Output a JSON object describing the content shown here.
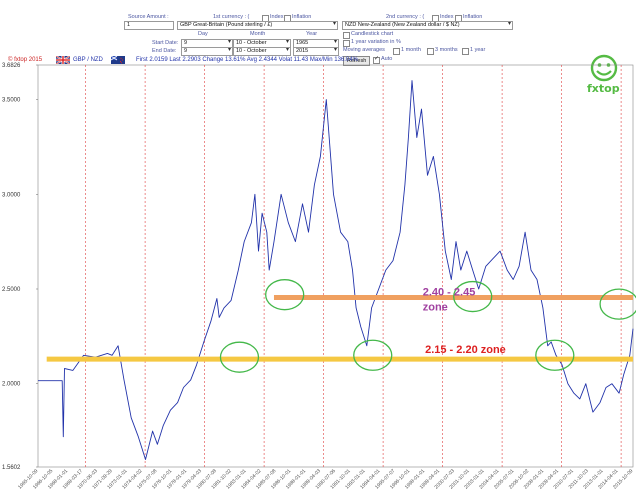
{
  "form": {
    "source_amount_label": "Source Amount :",
    "source_amount_value": "1",
    "first_currency_label": "1st currency : (",
    "index_label": "Index",
    "inflation_label": "Inflation",
    "first_currency_value": "GBP Great-Britain (Pound sterling / £)",
    "second_currency_label": "2nd currency : (",
    "second_currency_value": "NZD New-Zealand (New Zealand dollar / $ NZ)",
    "day_label": "Day",
    "month_label": "Month",
    "year_label": "Year",
    "start_date_label": "Start Date:",
    "end_date_label": "End Date:",
    "start_day": "9",
    "start_month": "10 - October",
    "start_year": "1965",
    "end_day": "9",
    "end_month": "10 - October",
    "end_year": "2015",
    "candlestick_label": "Candlestick chart",
    "variation_label": "1 year variation in %",
    "moving_avg_label": "Moving averages",
    "ma_1m": "1 month",
    "ma_3m": "3 months",
    "ma_1y": "1 year",
    "refresh_label": "Refresh",
    "auto_label": "Auto"
  },
  "header": {
    "copyright": "© fxtop 2015",
    "pair": "GBP / NZD",
    "stats": "First 2.0159 Last 2.2903 Change 13.61% Avg 2.4344 Volat 11.43 Max/Min 136.04%"
  },
  "logo_text": "fxtop",
  "chart_data": {
    "type": "line",
    "x_start": "1965-10-09",
    "x_end": "2015-10-09",
    "ylim": [
      1.5602,
      3.6826
    ],
    "yticks": [
      "3.6826",
      "3.5000",
      "3.0000",
      "2.5000",
      "2.0000",
      "1.5602"
    ],
    "xlabel": "date",
    "grid": "vertical dashed red",
    "series": [
      {
        "x": [
          1965.77,
          1967.8,
          1967.9,
          1968.0,
          1968.7,
          1969.6,
          1970.6,
          1971.6,
          1972.0,
          1972.5,
          1973.0,
          1973.6,
          1974.2,
          1974.8,
          1975.4,
          1975.8,
          1976.3,
          1976.9,
          1977.5,
          1978.0,
          1978.6,
          1979.1,
          1979.7,
          1980.3,
          1980.8,
          1981.0,
          1981.4,
          1982.0,
          1982.6,
          1983.1,
          1983.7,
          1984.0,
          1984.3,
          1984.6,
          1985.0,
          1985.2,
          1985.6,
          1986.2,
          1986.8,
          1987.4,
          1988.0,
          1988.5,
          1989.0,
          1989.5,
          1990.0,
          1990.6,
          1991.2,
          1991.8,
          1992.2,
          1992.5,
          1992.9,
          1993.4,
          1993.8,
          1994.4,
          1995.0,
          1995.6,
          1996.2,
          1996.6,
          1996.9,
          1997.2,
          1997.6,
          1998.0,
          1998.5,
          1999.0,
          1999.5,
          2000.0,
          2000.5,
          2000.9,
          2001.3,
          2001.8,
          2002.3,
          2002.8,
          2003.4,
          2004.0,
          2004.6,
          2005.2,
          2005.7,
          2006.2,
          2006.7,
          2007.2,
          2007.7,
          2008.2,
          2008.6,
          2008.9,
          2009.3,
          2009.8,
          2010.3,
          2010.8,
          2011.3,
          2011.8,
          2012.4,
          2013.0,
          2013.5,
          2014.0,
          2014.6,
          2015.0,
          2015.5,
          2015.77
        ],
        "y": [
          2.0159,
          2.0159,
          1.72,
          2.08,
          2.07,
          2.15,
          2.14,
          2.16,
          2.15,
          2.2,
          2.02,
          1.82,
          1.72,
          1.6,
          1.75,
          1.68,
          1.78,
          1.86,
          1.9,
          1.98,
          2.02,
          2.1,
          2.22,
          2.33,
          2.45,
          2.35,
          2.4,
          2.44,
          2.6,
          2.75,
          2.85,
          3.0,
          2.7,
          2.9,
          2.8,
          2.6,
          2.75,
          3.0,
          2.85,
          2.75,
          2.95,
          2.8,
          3.05,
          3.2,
          3.5,
          3.0,
          2.8,
          2.75,
          2.6,
          2.4,
          2.3,
          2.2,
          2.4,
          2.5,
          2.6,
          2.65,
          2.8,
          3.05,
          3.3,
          3.6,
          3.3,
          3.45,
          3.1,
          3.2,
          3.0,
          2.7,
          2.55,
          2.75,
          2.6,
          2.7,
          2.6,
          2.5,
          2.62,
          2.66,
          2.7,
          2.6,
          2.55,
          2.62,
          2.8,
          2.6,
          2.55,
          2.4,
          2.2,
          2.22,
          2.15,
          2.1,
          2.0,
          1.95,
          1.92,
          2.0,
          1.85,
          1.9,
          1.98,
          2.0,
          1.95,
          2.05,
          2.15,
          2.2903
        ]
      }
    ],
    "annotations": [
      {
        "text": "2.40 - 2.45",
        "y": 2.44
      },
      {
        "text": "zone",
        "y": 2.44
      },
      {
        "text": "2.15 - 2.20 zone",
        "y": 2.13
      }
    ],
    "support_lines": [
      {
        "y": 2.455,
        "x_from": 1985.6,
        "x_to": 2015.77,
        "color": "#f0a060"
      },
      {
        "y": 2.13,
        "x_from": 1966.5,
        "x_to": 2015.77,
        "color": "#f5c842"
      }
    ],
    "highlight_circles": [
      {
        "x": 1986.5,
        "y": 2.47
      },
      {
        "x": 1982.7,
        "y": 2.14
      },
      {
        "x": 1993.9,
        "y": 2.15
      },
      {
        "x": 2002.3,
        "y": 2.46
      },
      {
        "x": 2009.2,
        "y": 2.15
      },
      {
        "x": 2014.6,
        "y": 2.42
      }
    ]
  },
  "x_tick_labels": [
    "1965-10-09",
    "1966-10-05",
    "1968-01-01",
    "1969-03-17",
    "1970-06-03",
    "1971-09-29",
    "1973-01-01",
    "1974-04-02",
    "1975-07-08",
    "1976-10-01",
    "1978-01-01",
    "1979-04-03",
    "1980-07-08",
    "1981-10-02",
    "1983-01-01",
    "1984-04-02",
    "1985-07-08",
    "1986-10-01",
    "1988-01-01",
    "1989-04-03",
    "1990-07-06",
    "1991-10-01",
    "1993-01-01",
    "1994-04-01",
    "1995-07-07",
    "1996-10-01",
    "1998-01-01",
    "1999-04-01",
    "2000-07-03",
    "2001-10-01",
    "2003-01-01",
    "2004-04-01",
    "2005-07-01",
    "2006-10-02",
    "2008-01-01",
    "2009-04-01",
    "2010-07-01",
    "2011-10-03",
    "2013-01-01",
    "2014-04-01",
    "2015-10-09"
  ],
  "colors": {
    "line": "#2233aa",
    "grid": "#e04040",
    "annot_upper": "#a040a0",
    "annot_lower": "#dd2020",
    "circle": "#44b84a",
    "logo": "#55bb44"
  }
}
